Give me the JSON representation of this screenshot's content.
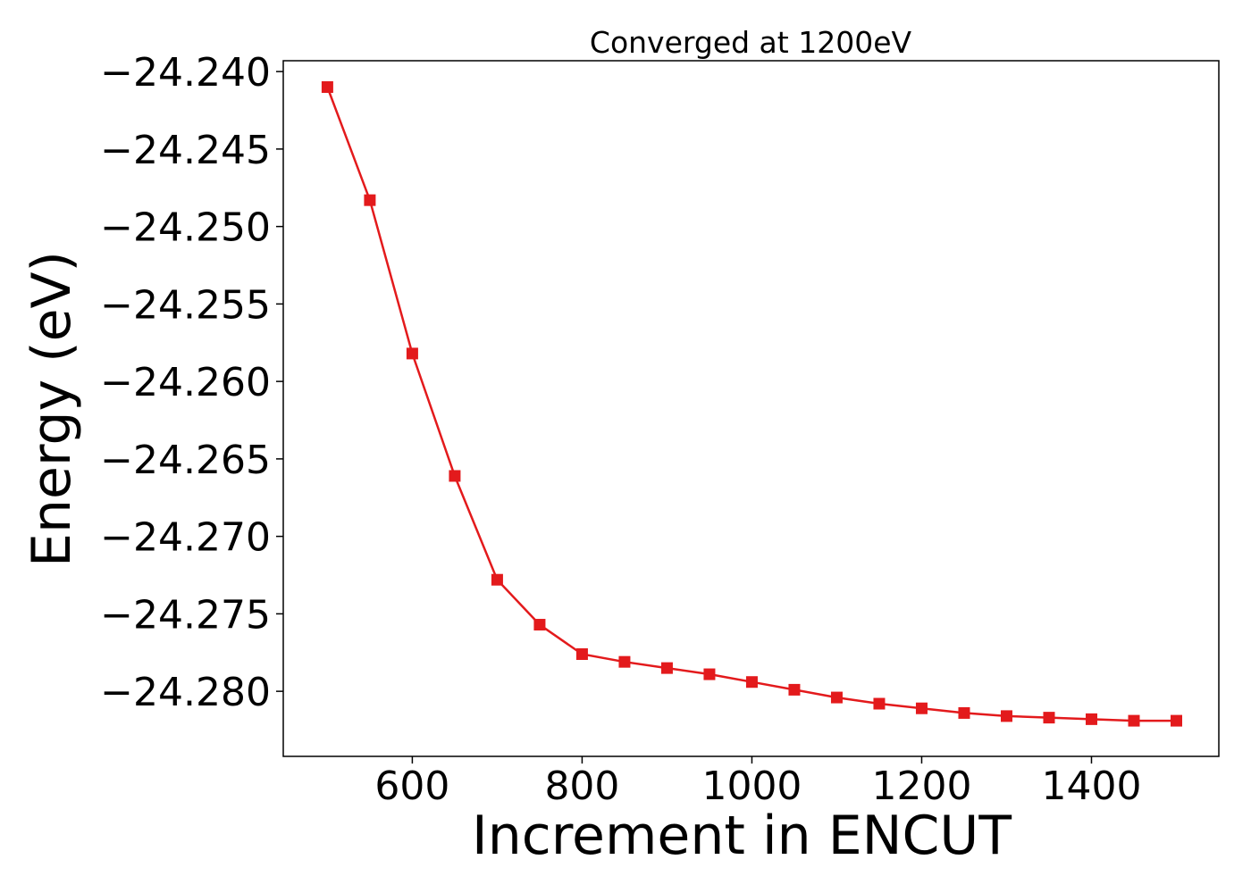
{
  "chart_data": {
    "type": "line",
    "title": "Converged at 1200eV",
    "xlabel": "Increment in ENCUT",
    "ylabel": "Energy (eV)",
    "xlim": [
      448,
      1550
    ],
    "ylim": [
      -24.2842,
      -24.2393
    ],
    "xticks": [
      600,
      800,
      1000,
      1200,
      1400
    ],
    "xtick_labels": [
      "600",
      "800",
      "1000",
      "1200",
      "1400"
    ],
    "yticks": [
      -24.24,
      -24.245,
      -24.25,
      -24.255,
      -24.26,
      -24.265,
      -24.27,
      -24.275,
      -24.28
    ],
    "ytick_labels": [
      "−24.240",
      "−24.245",
      "−24.250",
      "−24.255",
      "−24.260",
      "−24.265",
      "−24.270",
      "−24.275",
      "−24.280"
    ],
    "grid": false,
    "line_color": "#e31a1c",
    "marker": "square",
    "series": [
      {
        "x": [
          500,
          550,
          600,
          650,
          700,
          750,
          800,
          850,
          900,
          950,
          1000,
          1050,
          1100,
          1150,
          1200,
          1250,
          1300,
          1350,
          1400,
          1450,
          1500
        ],
        "values": [
          -24.241,
          -24.2483,
          -24.2582,
          -24.2661,
          -24.2728,
          -24.2757,
          -24.2776,
          -24.2781,
          -24.2785,
          -24.2789,
          -24.2794,
          -24.2799,
          -24.2804,
          -24.2808,
          -24.2811,
          -24.2814,
          -24.2816,
          -24.2817,
          -24.2818,
          -24.2819,
          -24.2819
        ]
      }
    ]
  }
}
